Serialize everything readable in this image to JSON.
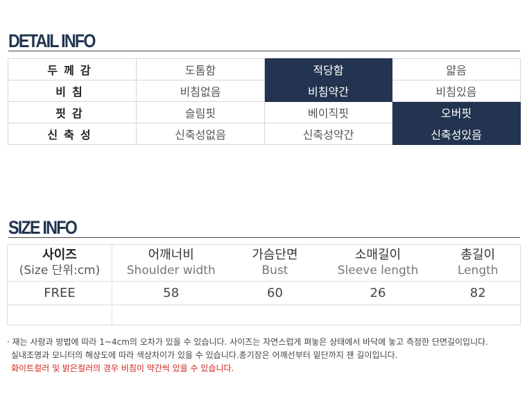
{
  "detail": {
    "title": "DETAIL INFO",
    "rows": [
      {
        "label": "두께감",
        "options": [
          "도톰함",
          "적당함",
          "얇음"
        ],
        "selected": 1
      },
      {
        "label": "비침",
        "options": [
          "비침없음",
          "비침약간",
          "비침있음"
        ],
        "selected": 1
      },
      {
        "label": "핏감",
        "options": [
          "슬림핏",
          "베이직핏",
          "오버핏"
        ],
        "selected": 2
      },
      {
        "label": "신축성",
        "options": [
          "신축성없음",
          "신축성약간",
          "신축성있음"
        ],
        "selected": 2
      }
    ],
    "highlight_color": "#22344f"
  },
  "size": {
    "title": "SIZE INFO",
    "headers": [
      {
        "ko": "사이즈",
        "en": "(Size 단위:cm)"
      },
      {
        "ko": "어깨너비",
        "en": "Shoulder width"
      },
      {
        "ko": "가슴단면",
        "en": "Bust"
      },
      {
        "ko": "소매길이",
        "en": "Sleeve length"
      },
      {
        "ko": "총길이",
        "en": "Length"
      }
    ],
    "rows": [
      [
        "FREE",
        "58",
        "60",
        "26",
        "82"
      ]
    ]
  },
  "notes": {
    "line1": "· 재는 사람과 방법에 따라 1~4cm의 오차가 있을 수 있습니다. 사이즈는 자연스럽게 펴놓은 상태에서 바닥에 놓고 측정한 단면길이입니다.",
    "line2": "실내조명과 모니터의 해상도에 따라 색상차이가 있을 수 있습니다.총기장은 어깨선부터 밑단까지 잰 길이입니다.",
    "line3": "화이트컬러 및 밝은컬러의 경우 비침이 약간씩 있을 수 있습니다."
  }
}
